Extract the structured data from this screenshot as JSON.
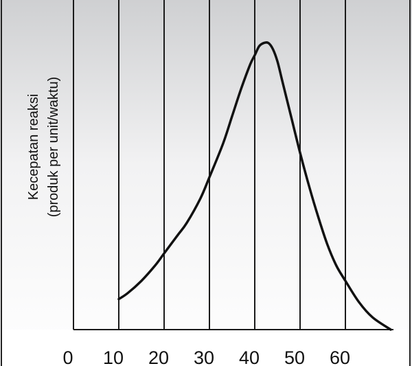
{
  "chart_data": {
    "type": "line",
    "title": "",
    "xlabel": "",
    "ylabel": [
      "Kecepatan reaksi",
      "(produk per unit/waktu)"
    ],
    "x_tick_labels": [
      "0",
      "10",
      "20",
      "30",
      "40",
      "50",
      "60"
    ],
    "xlim": [
      0,
      70
    ],
    "ylim": [
      0,
      1
    ],
    "y_ticks": false,
    "grid": "vertical",
    "series": [
      {
        "values": [
          [
            10,
            0.1
          ],
          [
            12,
            0.12
          ],
          [
            15,
            0.16
          ],
          [
            18,
            0.21
          ],
          [
            20,
            0.25
          ],
          [
            23,
            0.31
          ],
          [
            25,
            0.35
          ],
          [
            28,
            0.43
          ],
          [
            30,
            0.5
          ],
          [
            33,
            0.61
          ],
          [
            35,
            0.7
          ],
          [
            37,
            0.79
          ],
          [
            39,
            0.87
          ],
          [
            40,
            0.9
          ],
          [
            41,
            0.93
          ],
          [
            42,
            0.94
          ],
          [
            43,
            0.94
          ],
          [
            44,
            0.92
          ],
          [
            45,
            0.88
          ],
          [
            46,
            0.82
          ],
          [
            47,
            0.76
          ],
          [
            48,
            0.7
          ],
          [
            50,
            0.58
          ],
          [
            52,
            0.47
          ],
          [
            54,
            0.37
          ],
          [
            56,
            0.28
          ],
          [
            58,
            0.21
          ],
          [
            60,
            0.16
          ],
          [
            63,
            0.09
          ],
          [
            66,
            0.04
          ],
          [
            70,
            0.0
          ]
        ]
      }
    ]
  }
}
